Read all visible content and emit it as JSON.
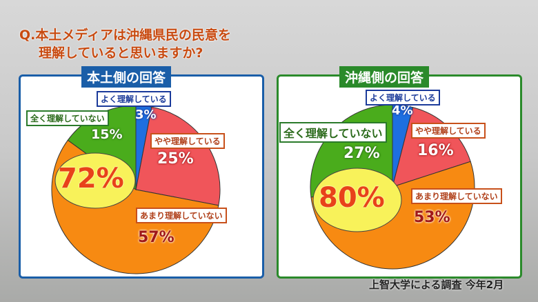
{
  "question": {
    "line1": "Q.本土メディアは沖縄県民の民意を",
    "line2": "理解していると思いますか?"
  },
  "source": "上智大学による調査 今年2月",
  "colors": {
    "blue": "#1e6fe0",
    "red": "#f0555a",
    "orange": "#f78a12",
    "green": "#4aac1c",
    "yellow": "#f8f25a",
    "mainland_border": "#1a5ea8",
    "okinawa_border": "#2a8a2a"
  },
  "chart_data": [
    {
      "type": "pie",
      "title": "本土側の回答",
      "categories": [
        "よく理解している",
        "やや理解している",
        "あまり理解していない",
        "全く理解していない"
      ],
      "values": [
        3,
        25,
        57,
        15
      ],
      "labels": [
        "3%",
        "25%",
        "57%",
        "15%"
      ],
      "highlight": "72%"
    },
    {
      "type": "pie",
      "title": "沖縄側の回答",
      "categories": [
        "よく理解している",
        "やや理解している",
        "あまり理解していない",
        "全く理解していない"
      ],
      "values": [
        4,
        16,
        53,
        27
      ],
      "labels": [
        "4%",
        "16%",
        "53%",
        "27%"
      ],
      "highlight": "80%"
    }
  ]
}
